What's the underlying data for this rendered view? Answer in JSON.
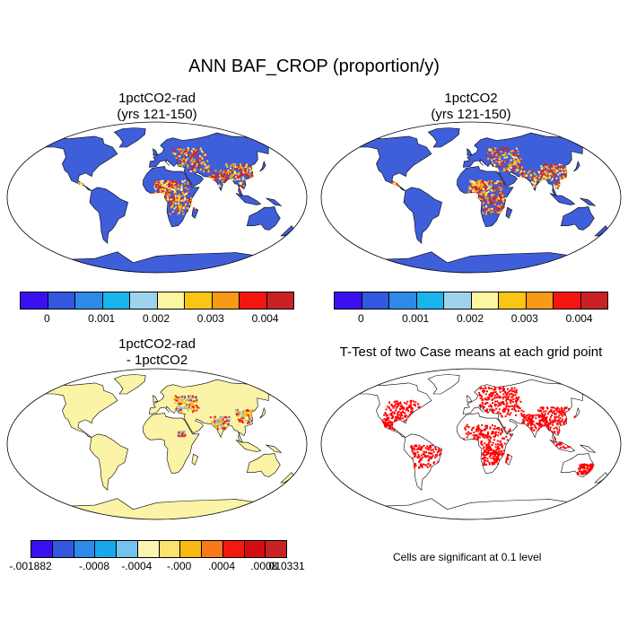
{
  "title": "ANN BAF_CROP (proportion/y)",
  "panels": [
    {
      "title1": "1pctCO2-rad",
      "title2": "(yrs 121-150)",
      "field": "baf_a"
    },
    {
      "title1": "1pctCO2",
      "title2": "(yrs 121-150)",
      "field": "baf_b"
    },
    {
      "title1": "1pctCO2-rad",
      "title2": "- 1pctCO2",
      "field": "diff"
    },
    {
      "title1": "T-Test of two Case means at each grid point",
      "title2": "",
      "field": "ttest"
    }
  ],
  "colorbar_top": {
    "colors": [
      "#3a0ff0",
      "#3258e0",
      "#2d8ae8",
      "#19b4ec",
      "#9fd3ec",
      "#fdf6a0",
      "#fac514",
      "#f89a15",
      "#f4150f",
      "#c92225"
    ],
    "tick_labels": [
      "0",
      "0.001",
      "0.002",
      "0.003",
      "0.004"
    ]
  },
  "colorbar_diff": {
    "colors": [
      "#3a0ff0",
      "#3258e0",
      "#2d8ae8",
      "#19a8ec",
      "#72c4ee",
      "#f9f6b2",
      "#fde26e",
      "#fab813",
      "#f8791a",
      "#f3190e",
      "#d60d10",
      "#c92225"
    ],
    "tick_labels": [
      "-.001882",
      "-.0008",
      "-.0004",
      "-.000",
      ".0004",
      ".0008",
      ".010331"
    ]
  },
  "note": "Cells are significant at 0.1 level",
  "map_colors": {
    "ocean": "#ffffff",
    "baf_land": "#3f5ed9",
    "diff_land": "#fbf3a5",
    "sig": "#ff0000",
    "outline": "#000000"
  }
}
